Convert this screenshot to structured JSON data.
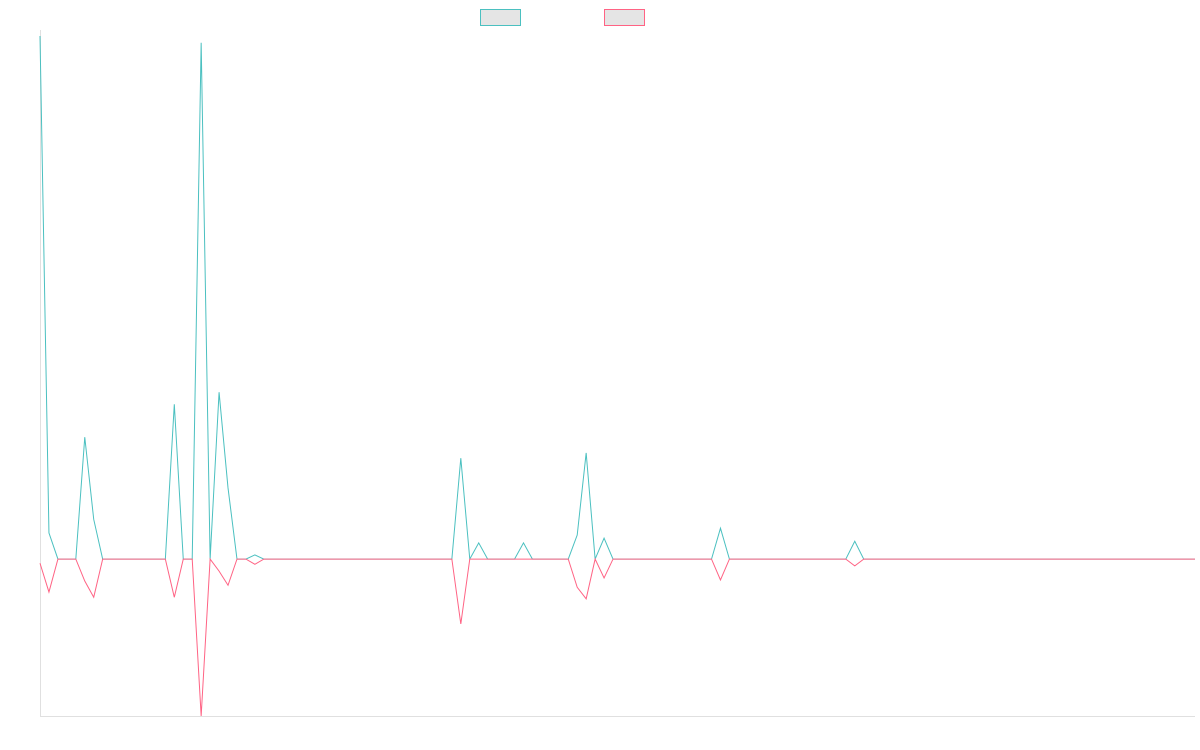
{
  "chart_data": {
    "type": "line",
    "title": "",
    "xlabel": "",
    "ylabel": "",
    "ylim": [
      -30,
      100
    ],
    "grid": false,
    "legend": "top",
    "series": [
      {
        "color": "#4bc0c0",
        "values": [
          100,
          5,
          0,
          0,
          0,
          23.3,
          7.6,
          0,
          0,
          0,
          0,
          0,
          0,
          0,
          0,
          29.6,
          0,
          0,
          98.7,
          0,
          31.9,
          13.6,
          0,
          0,
          0.8,
          0,
          0,
          0,
          0,
          0,
          0,
          0,
          0,
          0,
          0,
          0,
          0,
          0,
          0,
          0,
          0,
          0,
          0,
          0,
          0,
          0,
          0,
          19.3,
          0,
          3.1,
          0,
          0,
          0,
          0,
          3.1,
          0,
          0,
          0,
          0,
          0,
          4.6,
          20.3,
          0,
          4,
          0,
          0,
          0,
          0,
          0,
          0,
          0,
          0,
          0,
          0,
          0,
          0,
          5.9,
          0,
          0,
          0,
          0,
          0,
          0,
          0,
          0,
          0,
          0,
          0,
          0,
          0,
          0,
          3.4,
          0,
          0,
          0,
          0,
          0,
          0,
          0,
          0,
          0,
          0,
          0,
          0,
          0,
          0,
          0,
          0,
          0,
          0,
          0,
          0,
          0,
          0,
          0,
          0,
          0,
          0,
          0,
          0,
          0,
          0,
          0,
          0,
          0,
          0,
          0,
          0,
          0,
          0
        ]
      },
      {
        "color": "#ff6384",
        "values": [
          -0.8,
          -6.3,
          0,
          0,
          0,
          -4.2,
          -7.3,
          0,
          0,
          0,
          0,
          0,
          0,
          0,
          0,
          -7.3,
          0,
          0,
          -30,
          0,
          -2.3,
          -5,
          0,
          0,
          -1,
          0,
          0,
          0,
          0,
          0,
          0,
          0,
          0,
          0,
          0,
          0,
          0,
          0,
          0,
          0,
          0,
          0,
          0,
          0,
          0,
          0,
          0,
          -12.4,
          0,
          0,
          0,
          0,
          0,
          0,
          0,
          0,
          0,
          0,
          0,
          0,
          -5.4,
          -7.6,
          0,
          -3.6,
          0,
          0,
          0,
          0,
          0,
          0,
          0,
          0,
          0,
          0,
          0,
          0,
          -4,
          0,
          0,
          0,
          0,
          0,
          0,
          0,
          0,
          0,
          0,
          0,
          0,
          0,
          0,
          -1.3,
          0,
          0,
          0,
          0,
          0,
          0,
          0,
          0,
          0,
          0,
          0,
          0,
          0,
          0,
          0,
          0,
          0,
          0,
          0,
          0,
          0,
          0,
          0,
          0,
          0,
          0,
          0,
          0,
          0,
          0,
          0,
          0,
          0,
          0,
          0,
          0,
          0,
          0
        ]
      }
    ]
  }
}
